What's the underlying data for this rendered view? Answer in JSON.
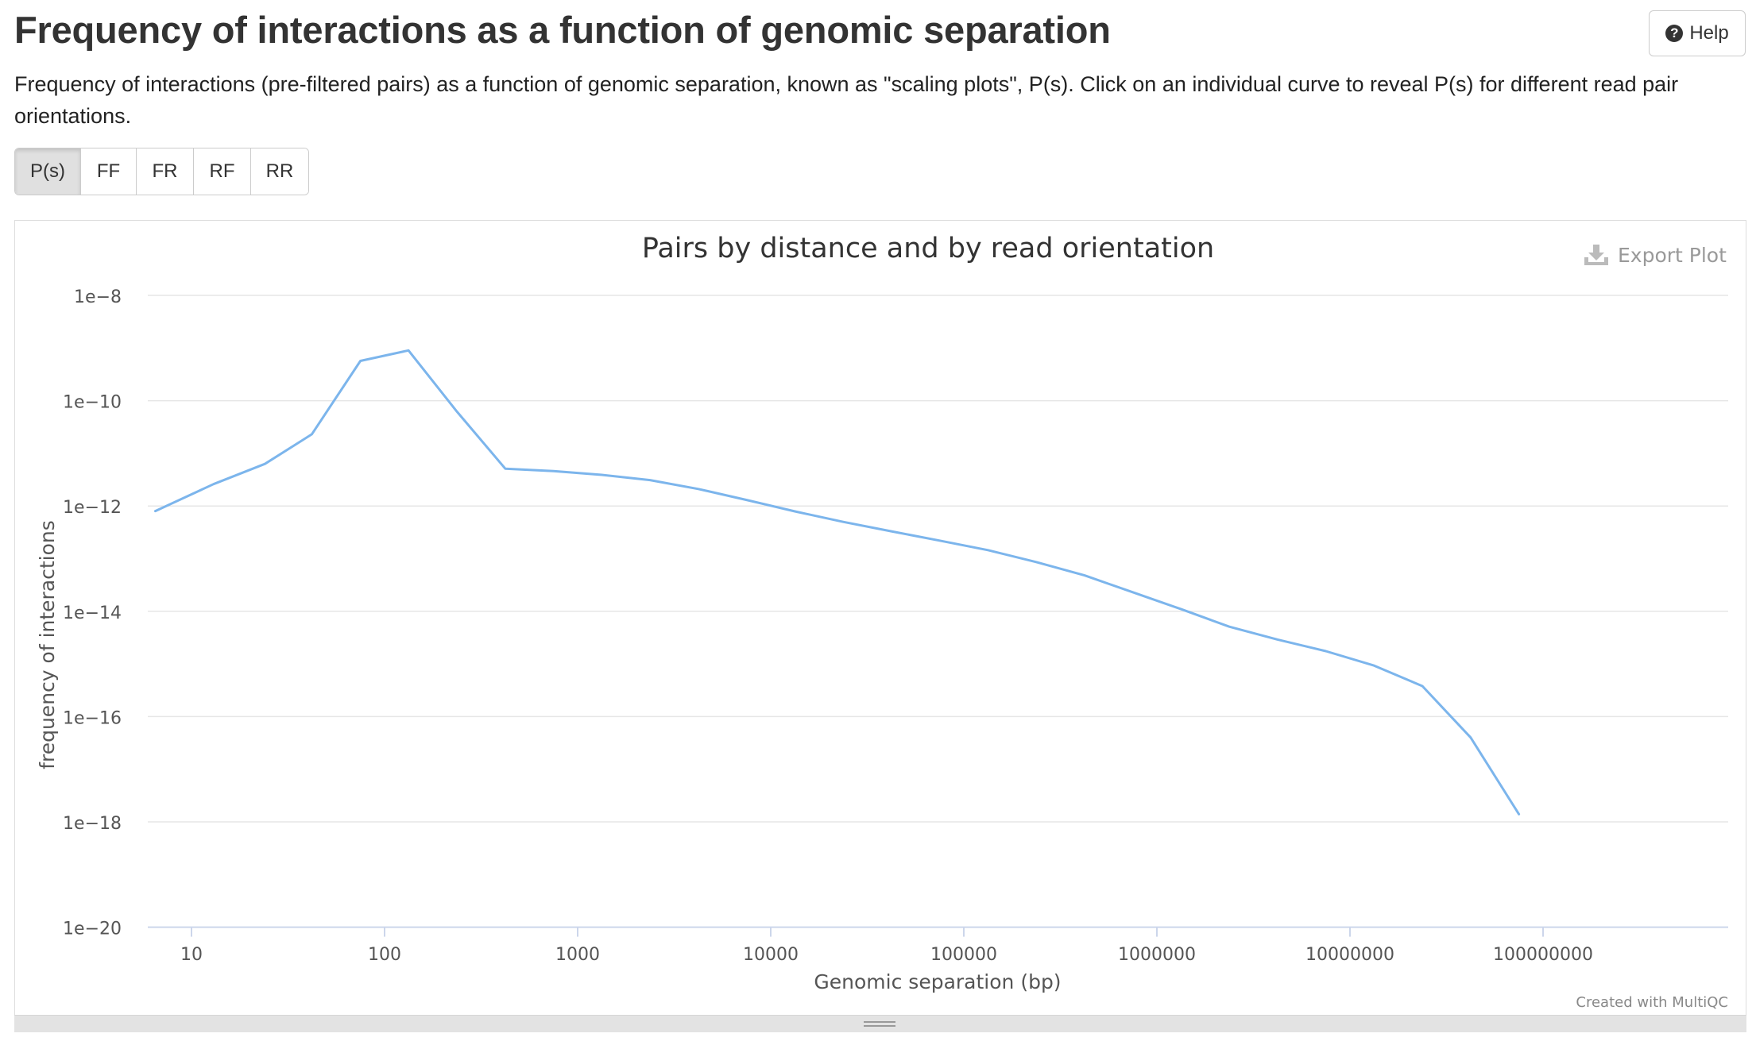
{
  "header": {
    "title": "Frequency of interactions as a function of genomic separation",
    "help_label": "Help",
    "description": "Frequency of interactions (pre-filtered pairs) as a function of genomic separation, known as \"scaling plots\", P(s). Click on an individual curve to reveal P(s) for different read pair orientations."
  },
  "tabs": [
    {
      "label": "P(s)",
      "active": true
    },
    {
      "label": "FF",
      "active": false
    },
    {
      "label": "FR",
      "active": false
    },
    {
      "label": "RF",
      "active": false
    },
    {
      "label": "RR",
      "active": false
    }
  ],
  "plot": {
    "export_label": "Export Plot",
    "credit": "Created with MultiQC"
  },
  "chart_data": {
    "type": "line",
    "title": "Pairs by distance and by read orientation",
    "xlabel": "Genomic separation (bp)",
    "ylabel": "frequency of interactions",
    "x_scale": "log",
    "y_scale": "log",
    "x_ticks": [
      "10",
      "100",
      "1000",
      "10000",
      "100000",
      "1000000",
      "10000000",
      "100000000"
    ],
    "y_ticks": [
      "1e-8",
      "1e-10",
      "1e-12",
      "1e-14",
      "1e-16",
      "1e-18",
      "1e-20"
    ],
    "grid": true,
    "legend": "none",
    "line_color": "#7cb5ec",
    "series": [
      {
        "points": [
          [
            6.5,
            8e-13
          ],
          [
            13,
            2.6e-12
          ],
          [
            24,
            6.3e-12
          ],
          [
            42,
            2.3e-11
          ],
          [
            75,
            5.7e-10
          ],
          [
            133,
            9e-10
          ],
          [
            237,
            6.2e-11
          ],
          [
            422,
            5.1e-12
          ],
          [
            750,
            4.6e-12
          ],
          [
            1334,
            3.9e-12
          ],
          [
            2371,
            3.1e-12
          ],
          [
            4217,
            2.1e-12
          ],
          [
            7499,
            1.3e-12
          ],
          [
            13335,
            7.9e-13
          ],
          [
            23714,
            5e-13
          ],
          [
            42170,
            3.3e-13
          ],
          [
            74989,
            2.2e-13
          ],
          [
            133352,
            1.45e-13
          ],
          [
            237137,
            8.6e-14
          ],
          [
            421697,
            4.8e-14
          ],
          [
            749894,
            2.3e-14
          ],
          [
            1333521,
            1.1e-14
          ],
          [
            2371374,
            5.1e-15
          ],
          [
            4216965,
            2.9e-15
          ],
          [
            7498942,
            1.75e-15
          ],
          [
            13335214,
            9.3e-16
          ],
          [
            23713737,
            3.8e-16
          ],
          [
            42169650,
            4e-17
          ],
          [
            74989421,
            1.4e-18
          ]
        ]
      }
    ]
  }
}
